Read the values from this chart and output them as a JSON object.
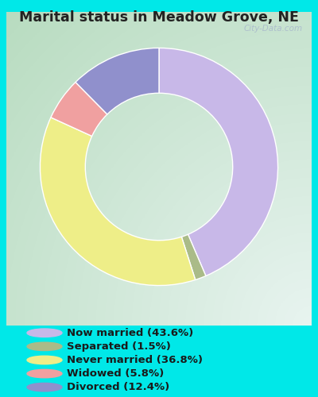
{
  "title": "Marital status in Meadow Grove, NE",
  "slices": [
    43.6,
    1.5,
    36.8,
    5.8,
    12.4
  ],
  "labels": [
    "Now married (43.6%)",
    "Separated (1.5%)",
    "Never married (36.8%)",
    "Widowed (5.8%)",
    "Divorced (12.4%)"
  ],
  "colors": [
    "#c8b8e8",
    "#aabb88",
    "#eeee88",
    "#f0a0a0",
    "#9090cc"
  ],
  "legend_colors": [
    "#c8b8e8",
    "#aabb88",
    "#eeee88",
    "#f0a0a0",
    "#9090cc"
  ],
  "bg_topleft": "#d0ede0",
  "bg_topright": "#e8f4f0",
  "bg_bottomleft": "#c8e8d8",
  "bg_bottomright": "#d8f0e8",
  "outer_bg": "#00e8e8",
  "title_color": "#222222",
  "watermark": "City-Data.com",
  "donut_width": 0.38,
  "start_angle": 90
}
